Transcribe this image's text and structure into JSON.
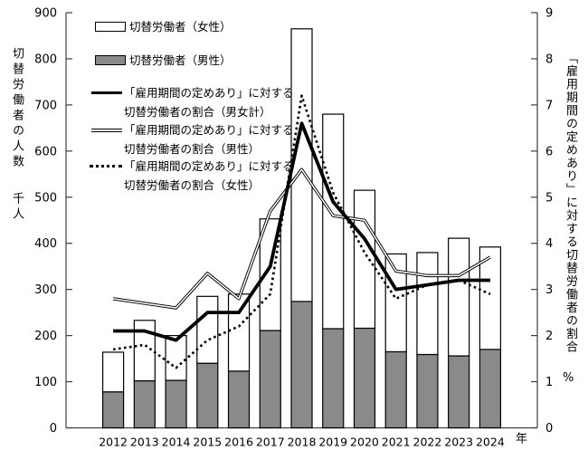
{
  "chart_data": {
    "type": "combo-stacked-bar-line",
    "title": "",
    "categories": [
      2012,
      2013,
      2014,
      2015,
      2016,
      2017,
      2018,
      2019,
      2020,
      2021,
      2022,
      2023,
      2024
    ],
    "x_suffix": "年",
    "grid": false,
    "legend_position": "top-left-inside",
    "series": [
      {
        "name": "切替労働者（男性）",
        "type": "bar",
        "stack": "workers",
        "axis": "left",
        "color": "#8a8a8a",
        "values": [
          78,
          102,
          103,
          140,
          123,
          211,
          274,
          215,
          216,
          165,
          159,
          156,
          170
        ]
      },
      {
        "name": "切替労働者（女性）",
        "type": "bar",
        "stack": "workers",
        "axis": "left",
        "color": "#ffffff",
        "values": [
          86,
          131,
          97,
          145,
          167,
          242,
          591,
          465,
          299,
          212,
          221,
          255,
          222
        ]
      },
      {
        "name": "「雇用期間の定めあり」に対する切替労働者の割合（男女計）",
        "type": "line",
        "style": "thick-solid",
        "axis": "right",
        "color": "#000000",
        "values": [
          2.1,
          2.1,
          1.9,
          2.5,
          2.5,
          3.5,
          6.6,
          4.9,
          4.1,
          3.0,
          3.1,
          3.2,
          3.2
        ]
      },
      {
        "name": "「雇用期間の定めあり」に対する切替労働者の割合（男性）",
        "type": "line",
        "style": "thin-double",
        "axis": "right",
        "color": "#000000",
        "values": [
          2.8,
          2.7,
          2.6,
          3.35,
          2.8,
          4.7,
          5.6,
          4.6,
          4.5,
          3.4,
          3.3,
          3.3,
          3.7
        ]
      },
      {
        "name": "「雇用期間の定めあり」に対する切替労働者の割合（女性）",
        "type": "line",
        "style": "dotted",
        "axis": "right",
        "color": "#000000",
        "values": [
          1.7,
          1.8,
          1.3,
          1.9,
          2.2,
          2.9,
          7.2,
          5.1,
          3.8,
          2.8,
          3.1,
          3.2,
          2.9
        ]
      }
    ],
    "axis_left": {
      "title": "切替労働者の人数",
      "unit": "千人",
      "min": 0,
      "max": 900,
      "step": 100
    },
    "axis_right": {
      "title": "「雇用期間の定めあり」に対する切替労働者の割合",
      "unit": "%",
      "min": 0,
      "max": 9,
      "step": 1
    }
  },
  "legend": {
    "bar_female": "切替労働者（女性）",
    "bar_male": "切替労働者（男性）",
    "line_total_l1": "「雇用期間の定めあり」に対する",
    "line_total_l2": "切替労働者の割合（男女計）",
    "line_male_l1": "「雇用期間の定めあり」に対する",
    "line_male_l2": "切替労働者の割合（男性）",
    "line_female_l1": "「雇用期間の定めあり」に対する",
    "line_female_l2": "切替労働者の割合（女性）"
  },
  "labels": {
    "y_left_title": "切替労働者の人数",
    "y_left_unit": "千人",
    "y_right_title": "「雇用期間の定めあり」に対する切替労働者の割合",
    "y_right_unit": "%",
    "x_suffix": "年"
  }
}
